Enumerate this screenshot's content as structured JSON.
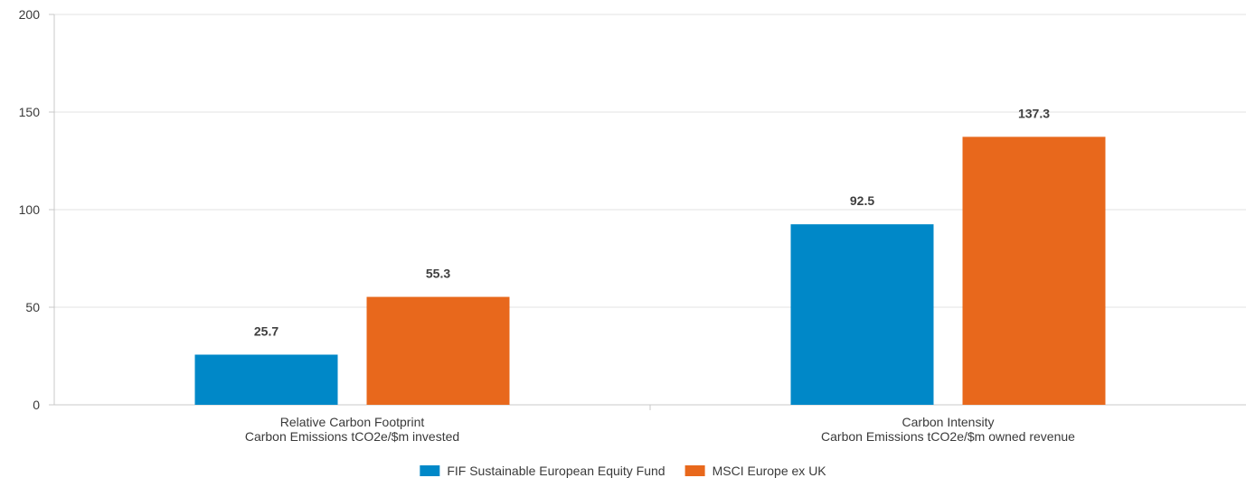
{
  "chart_data": {
    "type": "bar",
    "title": "",
    "xlabel": "",
    "ylabel": "",
    "categories": [
      [
        "Relative Carbon Footprint",
        "Carbon Emissions tCO2e/$m invested"
      ],
      [
        "Carbon Intensity",
        "Carbon Emissions tCO2e/$m owned revenue"
      ]
    ],
    "series": [
      {
        "name": "FIF Sustainable European Equity Fund",
        "color": "#0088c8",
        "values": [
          25.7,
          92.5
        ]
      },
      {
        "name": "MSCI Europe ex UK",
        "color": "#e8681c",
        "values": [
          55.3,
          137.3
        ]
      }
    ],
    "ylim": [
      0,
      200
    ],
    "yticks": [
      0,
      50,
      100,
      150,
      200
    ],
    "grid": true,
    "legend": "bottom-center"
  }
}
